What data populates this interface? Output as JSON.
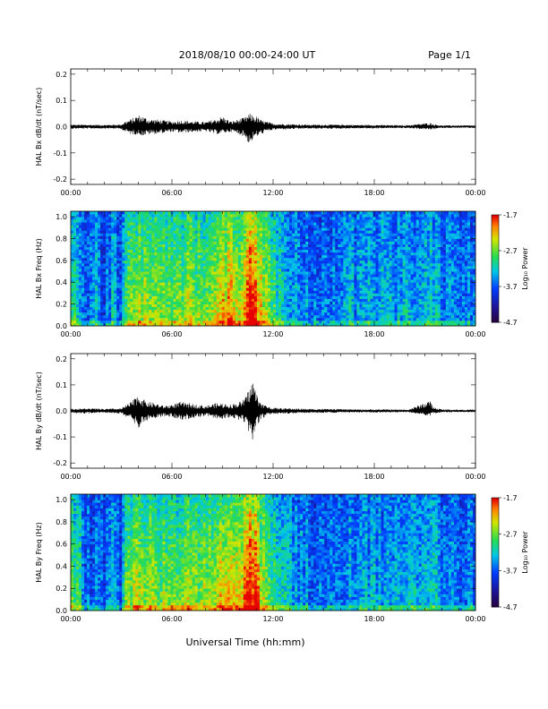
{
  "header": {
    "title": "2018/08/10   00:00-24:00 UT",
    "page": "Page 1/1"
  },
  "footer": {
    "xlabel": "Universal Time (hh:mm)"
  },
  "time_ticks": [
    "00:00",
    "06:00",
    "12:00",
    "18:00",
    "00:00"
  ],
  "colors": {
    "trace": "#000000",
    "axis": "#000000",
    "background": "#ffffff"
  },
  "chart_data": [
    {
      "type": "line",
      "ylabel": "HAL Bx dB/dt (nT/sec)",
      "xlim": [
        0,
        24
      ],
      "ylim": [
        -0.22,
        0.22
      ],
      "yticks": [
        "0.2",
        "0.1",
        "0.0",
        "-0.1",
        "-0.2"
      ],
      "ytick_values": [
        0.2,
        0.1,
        0.0,
        -0.1,
        -0.2
      ],
      "xticks": [
        "00:00",
        "06:00",
        "12:00",
        "18:00",
        "00:00"
      ],
      "envelope": {
        "hours": [
          0,
          1,
          2,
          3,
          3.2,
          3.6,
          4.0,
          4.3,
          4.6,
          5.0,
          5.5,
          6.0,
          6.5,
          7.0,
          7.5,
          8.0,
          8.6,
          9.0,
          9.5,
          10.0,
          10.3,
          10.6,
          10.8,
          11.0,
          11.3,
          11.6,
          12.0,
          13.0,
          14.0,
          15.0,
          16.0,
          17.0,
          18.0,
          19.0,
          20.0,
          21.3,
          21.5,
          22.0,
          23.0,
          24.0
        ],
        "max": [
          0.008,
          0.008,
          0.007,
          0.009,
          0.02,
          0.03,
          0.045,
          0.04,
          0.03,
          0.028,
          0.025,
          0.02,
          0.025,
          0.022,
          0.02,
          0.018,
          0.03,
          0.04,
          0.02,
          0.03,
          0.035,
          0.05,
          0.045,
          0.04,
          0.025,
          0.02,
          0.012,
          0.01,
          0.008,
          0.008,
          0.008,
          0.007,
          0.007,
          0.006,
          0.006,
          0.015,
          0.01,
          0.005,
          0.005,
          0.005
        ],
        "min": [
          -0.008,
          -0.008,
          -0.007,
          -0.009,
          -0.02,
          -0.03,
          -0.03,
          -0.035,
          -0.03,
          -0.028,
          -0.025,
          -0.02,
          -0.025,
          -0.022,
          -0.02,
          -0.018,
          -0.03,
          -0.025,
          -0.02,
          -0.03,
          -0.04,
          -0.07,
          -0.05,
          -0.04,
          -0.03,
          -0.02,
          -0.012,
          -0.01,
          -0.008,
          -0.008,
          -0.008,
          -0.007,
          -0.007,
          -0.006,
          -0.006,
          -0.012,
          -0.01,
          -0.005,
          -0.005,
          -0.005
        ]
      }
    },
    {
      "type": "heatmap",
      "ylabel": "HAL Bx Freq (Hz)",
      "xlim": [
        0,
        24
      ],
      "ylim": [
        0,
        1.05
      ],
      "yticks": [
        "1.0",
        "0.8",
        "0.6",
        "0.4",
        "0.2",
        "0.0"
      ],
      "ytick_values": [
        1.0,
        0.8,
        0.6,
        0.4,
        0.2,
        0.0
      ],
      "xticks": [
        "00:00",
        "06:00",
        "12:00",
        "18:00",
        "00:00"
      ],
      "colorbar": {
        "label": "Log₁₀ Power",
        "ticks": [
          "-1.7",
          "-2.7",
          "-3.7",
          "-4.7"
        ],
        "tick_values": [
          -1.7,
          -2.7,
          -3.7,
          -4.7
        ],
        "range": [
          -4.7,
          -1.7
        ]
      },
      "activity": {
        "hours": [
          0,
          0.5,
          1,
          1.5,
          2,
          2.5,
          3,
          3.2,
          3.6,
          4.0,
          4.5,
          5.0,
          5.5,
          6.0,
          6.5,
          7.0,
          7.5,
          8.0,
          8.5,
          9.0,
          9.5,
          10.0,
          10.4,
          10.7,
          11.0,
          11.4,
          11.8,
          12.5,
          13.0,
          14.0,
          15.0,
          16.0,
          16.5,
          17.0,
          18.0,
          19.0,
          20.0,
          21.0,
          21.5,
          22.0,
          23.0,
          24.0
        ],
        "level": [
          0.4,
          0.3,
          0.05,
          0.2,
          0.05,
          0.25,
          0.05,
          0.5,
          0.45,
          0.55,
          0.5,
          0.45,
          0.5,
          0.45,
          0.5,
          0.55,
          0.45,
          0.5,
          0.6,
          0.7,
          0.7,
          0.65,
          0.8,
          0.95,
          0.85,
          0.55,
          0.5,
          0.3,
          0.2,
          0.15,
          0.1,
          0.1,
          0.25,
          0.15,
          0.2,
          0.2,
          0.25,
          0.2,
          0.3,
          0.15,
          0.1,
          0.15
        ]
      }
    },
    {
      "type": "line",
      "ylabel": "HAL By dB/dt (nT/sec)",
      "xlim": [
        0,
        24
      ],
      "ylim": [
        -0.22,
        0.22
      ],
      "yticks": [
        "0.2",
        "0.1",
        "0.0",
        "-0.1",
        "-0.2"
      ],
      "ytick_values": [
        0.2,
        0.1,
        0.0,
        -0.1,
        -0.2
      ],
      "xticks": [
        "00:00",
        "06:00",
        "12:00",
        "18:00",
        "00:00"
      ],
      "envelope": {
        "hours": [
          0,
          1,
          2,
          3,
          3.2,
          3.6,
          4.0,
          4.3,
          4.6,
          5.0,
          5.5,
          6.0,
          6.5,
          7.0,
          7.5,
          8.0,
          8.6,
          9.0,
          9.5,
          10.0,
          10.3,
          10.6,
          10.8,
          11.0,
          11.3,
          11.6,
          12.0,
          13.0,
          14.0,
          15.0,
          16.0,
          17.0,
          18.0,
          19.0,
          20.0,
          21.3,
          21.5,
          22.0,
          23.0,
          24.0
        ],
        "max": [
          0.008,
          0.01,
          0.008,
          0.01,
          0.02,
          0.035,
          0.065,
          0.045,
          0.035,
          0.03,
          0.02,
          0.025,
          0.035,
          0.03,
          0.025,
          0.02,
          0.03,
          0.03,
          0.025,
          0.035,
          0.045,
          0.09,
          0.12,
          0.07,
          0.03,
          0.02,
          0.012,
          0.01,
          0.008,
          0.008,
          0.007,
          0.006,
          0.006,
          0.006,
          0.005,
          0.04,
          0.015,
          0.006,
          0.005,
          0.005
        ],
        "min": [
          -0.008,
          -0.01,
          -0.008,
          -0.01,
          -0.02,
          -0.035,
          -0.07,
          -0.045,
          -0.035,
          -0.03,
          -0.02,
          -0.025,
          -0.035,
          -0.03,
          -0.025,
          -0.02,
          -0.03,
          -0.03,
          -0.025,
          -0.035,
          -0.05,
          -0.09,
          -0.12,
          -0.07,
          -0.03,
          -0.02,
          -0.012,
          -0.01,
          -0.008,
          -0.008,
          -0.007,
          -0.006,
          -0.006,
          -0.006,
          -0.005,
          -0.02,
          -0.012,
          -0.006,
          -0.005,
          -0.005
        ]
      }
    },
    {
      "type": "heatmap",
      "ylabel": "HAL By Freq (Hz)",
      "xlim": [
        0,
        24
      ],
      "ylim": [
        0,
        1.05
      ],
      "yticks": [
        "1.0",
        "0.8",
        "0.6",
        "0.4",
        "0.2",
        "0.0"
      ],
      "ytick_values": [
        1.0,
        0.8,
        0.6,
        0.4,
        0.2,
        0.0
      ],
      "xticks": [
        "00:00",
        "06:00",
        "12:00",
        "18:00",
        "00:00"
      ],
      "colorbar": {
        "label": "Log₁₀ Power",
        "ticks": [
          "-1.7",
          "-2.7",
          "-3.7",
          "-4.7"
        ],
        "tick_values": [
          -1.7,
          -2.7,
          -3.7,
          -4.7
        ],
        "range": [
          -4.7,
          -1.7
        ]
      },
      "activity": {
        "hours": [
          0,
          0.5,
          1,
          1.5,
          2,
          2.5,
          3,
          3.2,
          3.6,
          4.0,
          4.5,
          5.0,
          5.5,
          6.0,
          6.5,
          7.0,
          7.5,
          8.0,
          8.5,
          9.0,
          9.5,
          10.0,
          10.4,
          10.7,
          11.0,
          11.4,
          11.8,
          12.5,
          13.0,
          14.0,
          15.0,
          16.0,
          16.5,
          17.0,
          18.0,
          19.0,
          20.0,
          21.0,
          21.5,
          22.0,
          23.0,
          24.0
        ],
        "level": [
          0.45,
          0.35,
          0.05,
          0.2,
          0.05,
          0.25,
          0.05,
          0.55,
          0.5,
          0.6,
          0.55,
          0.5,
          0.5,
          0.5,
          0.55,
          0.6,
          0.5,
          0.55,
          0.6,
          0.7,
          0.7,
          0.65,
          0.8,
          0.95,
          0.85,
          0.55,
          0.45,
          0.3,
          0.2,
          0.15,
          0.1,
          0.1,
          0.2,
          0.15,
          0.2,
          0.2,
          0.25,
          0.2,
          0.3,
          0.15,
          0.1,
          0.15
        ]
      }
    }
  ]
}
